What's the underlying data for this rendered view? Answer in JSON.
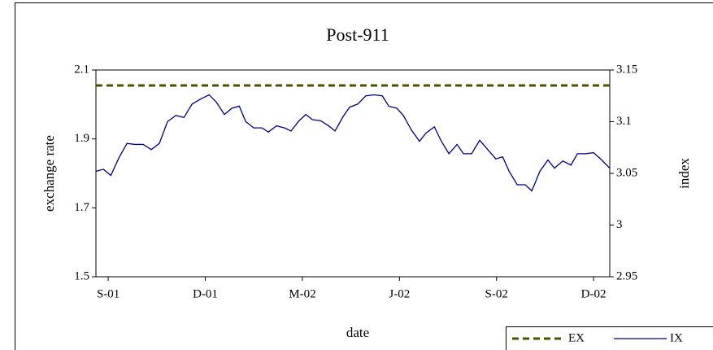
{
  "chart_data": {
    "type": "line",
    "title": "Post-911",
    "x_label": "date",
    "y_label": "exchange rate",
    "y2_label": "index",
    "xlim": [
      -0.38,
      15.5
    ],
    "xticks": [
      {
        "value": 0,
        "label": "S-01"
      },
      {
        "value": 3,
        "label": "D-01"
      },
      {
        "value": 6,
        "label": "M-02"
      },
      {
        "value": 9,
        "label": "J-02"
      },
      {
        "value": 12,
        "label": "S-02"
      },
      {
        "value": 15,
        "label": "D-02"
      }
    ],
    "ylim": [
      1.5,
      2.1
    ],
    "yticks": [
      1.5,
      1.7,
      1.9,
      2.1
    ],
    "y2lim": [
      2.95,
      3.15
    ],
    "y2ticks": [
      2.95,
      3,
      3.05,
      3.1,
      3.15
    ],
    "grid": false,
    "legend": "bottom-right",
    "series": [
      {
        "name": "EX",
        "color": "#4d5200",
        "dashed": true,
        "x": [
          -0.38,
          15.5
        ],
        "values": [
          2.055,
          2.055
        ]
      },
      {
        "name": "IX",
        "color": "#000080",
        "axis": "y2",
        "dashed": false,
        "x": [
          -0.38,
          -0.15,
          0.08,
          0.33,
          0.58,
          0.83,
          1.08,
          1.33,
          1.58,
          1.83,
          2.09,
          2.34,
          2.59,
          2.86,
          3.12,
          3.34,
          3.59,
          3.82,
          4.05,
          4.25,
          4.5,
          4.75,
          4.95,
          5.2,
          5.45,
          5.65,
          5.9,
          6.11,
          6.31,
          6.56,
          6.81,
          7.01,
          7.26,
          7.46,
          7.71,
          7.96,
          8.22,
          8.47,
          8.67,
          8.92,
          9.12,
          9.37,
          9.62,
          9.82,
          10.08,
          10.28,
          10.53,
          10.78,
          10.98,
          11.23,
          11.48,
          11.73,
          11.98,
          12.19,
          12.39,
          12.64,
          12.89,
          13.09,
          13.34,
          13.59,
          13.79,
          14.05,
          14.3,
          14.5,
          14.75,
          15,
          15.25,
          15.5
        ],
        "values": [
          3.052,
          3.054,
          3.048,
          3.065,
          3.079,
          3.078,
          3.078,
          3.073,
          3.079,
          3.1,
          3.106,
          3.104,
          3.117,
          3.122,
          3.126,
          3.119,
          3.107,
          3.113,
          3.115,
          3.1,
          3.094,
          3.094,
          3.09,
          3.096,
          3.094,
          3.091,
          3.101,
          3.107,
          3.102,
          3.101,
          3.096,
          3.091,
          3.105,
          3.114,
          3.117,
          3.125,
          3.126,
          3.125,
          3.115,
          3.113,
          3.106,
          3.092,
          3.081,
          3.089,
          3.095,
          3.082,
          3.069,
          3.078,
          3.069,
          3.069,
          3.082,
          3.073,
          3.064,
          3.066,
          3.052,
          3.039,
          3.039,
          3.033,
          3.052,
          3.063,
          3.055,
          3.062,
          3.058,
          3.069,
          3.069,
          3.07,
          3.063,
          3.055
        ]
      }
    ]
  }
}
